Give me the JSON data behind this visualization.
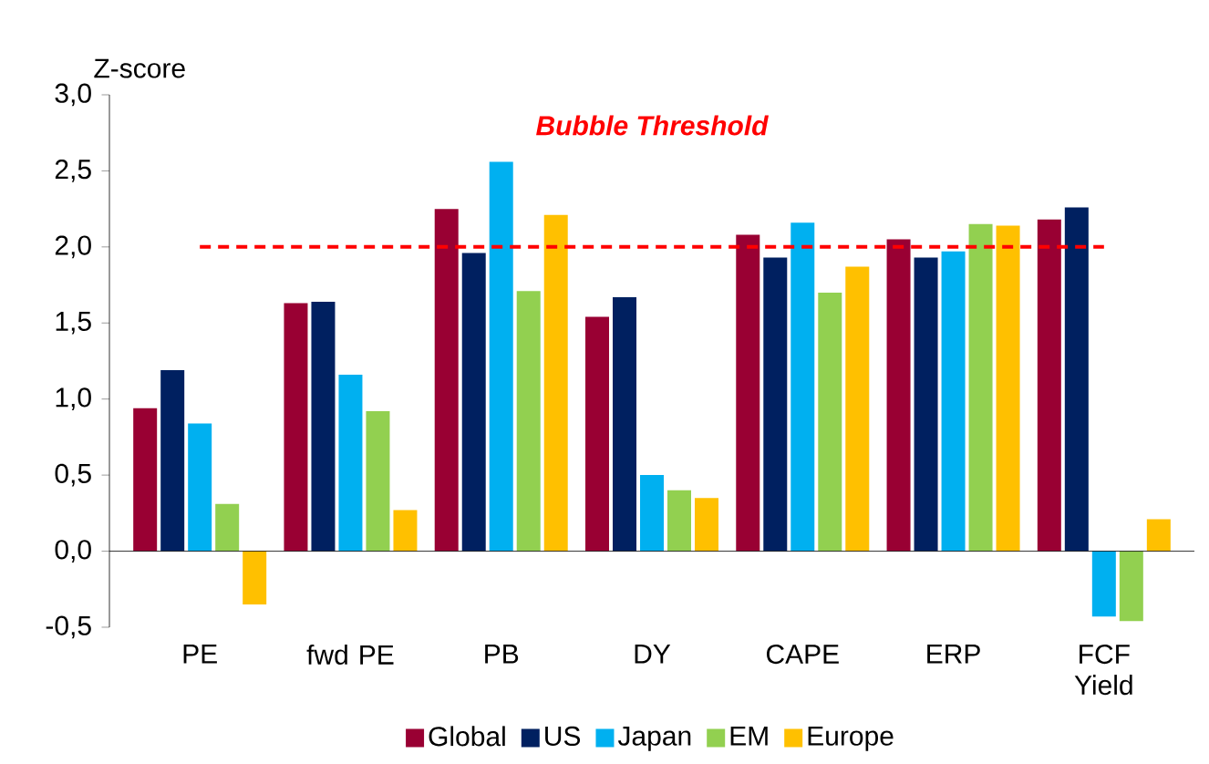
{
  "chart_data": {
    "type": "bar",
    "ylabel": "Z-score",
    "categories": [
      "PE",
      "fwd PE",
      "PB",
      "DY",
      "CAPE",
      "ERP",
      "FCF Yield"
    ],
    "series": [
      {
        "name": "Global",
        "color": "#990033",
        "values": [
          0.94,
          1.63,
          2.25,
          1.54,
          2.08,
          2.05,
          2.18
        ]
      },
      {
        "name": "US",
        "color": "#002060",
        "values": [
          1.19,
          1.64,
          1.96,
          1.67,
          1.93,
          1.93,
          2.26
        ]
      },
      {
        "name": "Japan",
        "color": "#00b0f0",
        "values": [
          0.84,
          1.16,
          2.56,
          0.5,
          2.16,
          1.97,
          -0.43
        ]
      },
      {
        "name": "EM",
        "color": "#92d050",
        "values": [
          0.31,
          0.92,
          1.71,
          0.4,
          1.7,
          2.15,
          -0.46
        ]
      },
      {
        "name": "Europe",
        "color": "#ffc000",
        "values": [
          -0.35,
          0.27,
          2.21,
          0.35,
          1.87,
          2.14,
          0.21
        ]
      }
    ],
    "ylim": [
      -0.5,
      3.0
    ],
    "yticks": [
      {
        "value": -0.5,
        "label": "-0,5"
      },
      {
        "value": 0.0,
        "label": "0,0"
      },
      {
        "value": 0.5,
        "label": "0,5"
      },
      {
        "value": 1.0,
        "label": "1,0"
      },
      {
        "value": 1.5,
        "label": "1,5"
      },
      {
        "value": 2.0,
        "label": "2,0"
      },
      {
        "value": 2.5,
        "label": "2,5"
      },
      {
        "value": 3.0,
        "label": "3,0"
      }
    ],
    "ref_lines": [
      {
        "axis": "y",
        "value": 2.0,
        "label": "**Bubble Threshold**",
        "color": "#ff0000",
        "line_style": "dashed"
      }
    ],
    "legend": "bottom"
  }
}
